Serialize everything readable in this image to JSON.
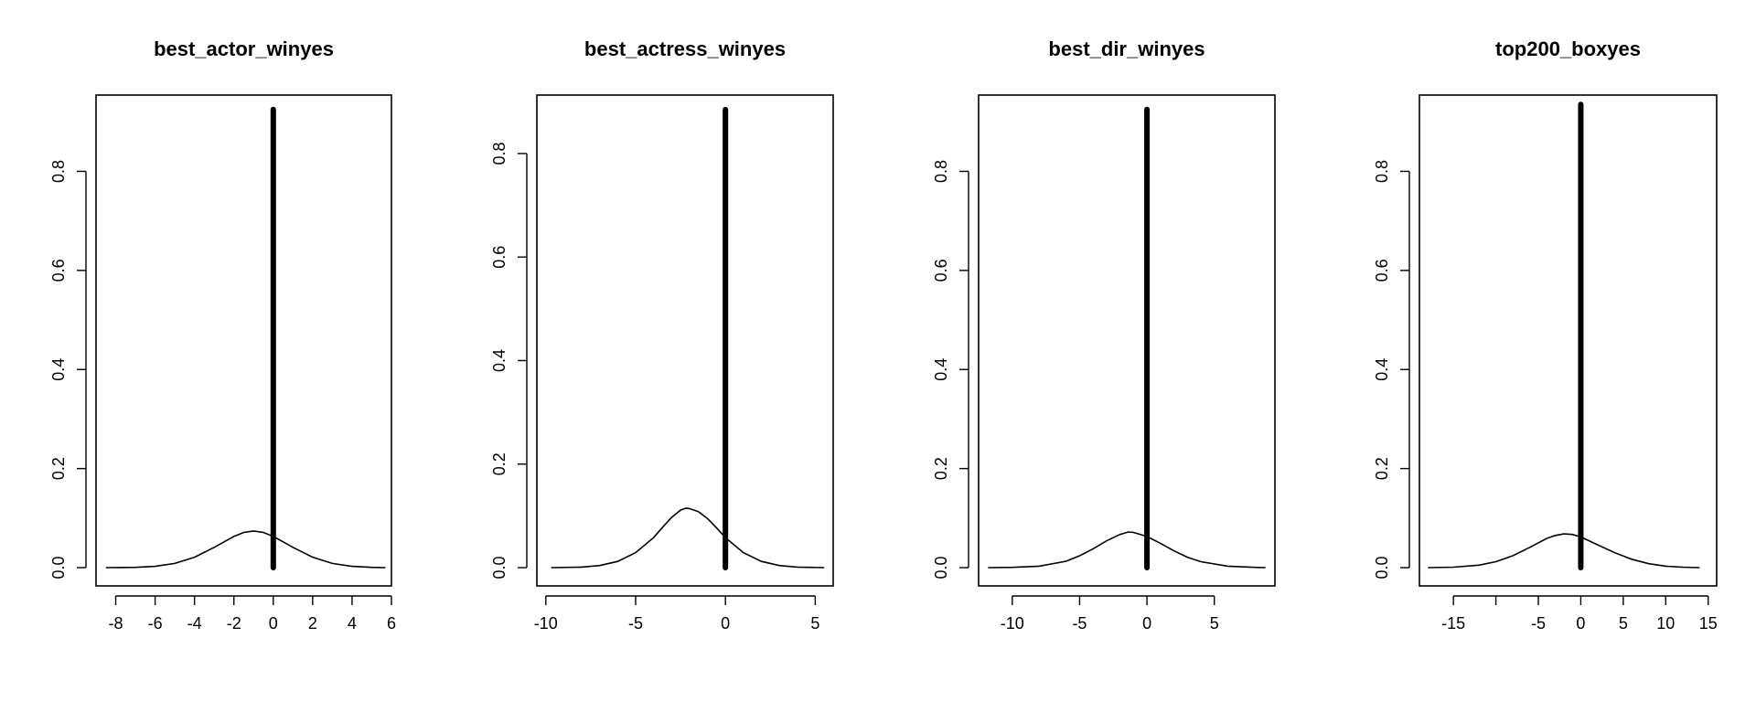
{
  "chart_data": [
    {
      "type": "line",
      "title": "best_actor_winyes",
      "xlabel": "",
      "ylabel": "",
      "xlim": [
        -9,
        6
      ],
      "ylim": [
        0,
        0.93
      ],
      "xticks": [
        -8,
        -6,
        -4,
        -2,
        0,
        2,
        4,
        6
      ],
      "xtick_labels": [
        "-8",
        "-6",
        "-4",
        "-2",
        "0",
        "2",
        "4",
        "6"
      ],
      "yticks": [
        0.0,
        0.2,
        0.4,
        0.6,
        0.8
      ],
      "ytick_labels": [
        "0.0",
        "0.2",
        "0.4",
        "0.6",
        "0.8"
      ],
      "grid": false,
      "prior_curve": {
        "x": [
          -8.5,
          -7,
          -6,
          -5,
          -4,
          -3,
          -2.5,
          -2,
          -1.5,
          -1,
          -0.5,
          0,
          0.5,
          1,
          2,
          3,
          4,
          5,
          5.7
        ],
        "y": [
          0.0,
          0.0005,
          0.0025,
          0.0085,
          0.021,
          0.041,
          0.052,
          0.063,
          0.071,
          0.074,
          0.071,
          0.063,
          0.052,
          0.041,
          0.021,
          0.0085,
          0.0025,
          0.0005,
          0.0
        ]
      },
      "point_mass": {
        "x": 0,
        "height": 0.925
      }
    },
    {
      "type": "line",
      "title": "best_actress_winyes",
      "xlabel": "",
      "ylabel": "",
      "xlim": [
        -10.5,
        6
      ],
      "ylim": [
        0,
        0.89
      ],
      "xticks": [
        -10,
        -5,
        0,
        5
      ],
      "xtick_labels": [
        "-10",
        "-5",
        "0",
        "5"
      ],
      "yticks": [
        0.0,
        0.2,
        0.4,
        0.6,
        0.8
      ],
      "ytick_labels": [
        "0.0",
        "0.2",
        "0.4",
        "0.6",
        "0.8"
      ],
      "grid": false,
      "prior_curve": {
        "x": [
          -9.7,
          -8,
          -7,
          -6,
          -5,
          -4,
          -3.5,
          -3,
          -2.5,
          -2.2,
          -2,
          -1.5,
          -1,
          -0.5,
          0,
          1,
          2,
          3,
          4,
          5.5
        ],
        "y": [
          0.0,
          0.001,
          0.004,
          0.012,
          0.029,
          0.058,
          0.078,
          0.097,
          0.111,
          0.115,
          0.114,
          0.108,
          0.095,
          0.077,
          0.058,
          0.029,
          0.012,
          0.004,
          0.001,
          0.0
        ]
      },
      "point_mass": {
        "x": 0,
        "height": 0.885
      }
    },
    {
      "type": "line",
      "title": "best_dir_winyes",
      "xlabel": "",
      "ylabel": "",
      "xlim": [
        -12.5,
        9.5
      ],
      "ylim": [
        0,
        0.93
      ],
      "xticks": [
        -10,
        -5,
        0,
        5
      ],
      "xtick_labels": [
        "-10",
        "-5",
        "0",
        "5"
      ],
      "yticks": [
        0.0,
        0.2,
        0.4,
        0.6,
        0.8
      ],
      "ytick_labels": [
        "0.0",
        "0.2",
        "0.4",
        "0.6",
        "0.8"
      ],
      "grid": false,
      "prior_curve": {
        "x": [
          -11.8,
          -10,
          -8,
          -6,
          -5,
          -4,
          -3,
          -2,
          -1.4,
          -1,
          0,
          1,
          2,
          3,
          4,
          6,
          8,
          8.8
        ],
        "y": [
          0.0,
          0.0005,
          0.003,
          0.013,
          0.024,
          0.038,
          0.054,
          0.067,
          0.072,
          0.071,
          0.063,
          0.049,
          0.034,
          0.021,
          0.012,
          0.003,
          0.0005,
          0.0
        ]
      },
      "point_mass": {
        "x": 0,
        "height": 0.925
      }
    },
    {
      "type": "line",
      "title": "top200_boxyes",
      "xlabel": "",
      "ylabel": "",
      "xlim": [
        -19,
        16
      ],
      "ylim": [
        0,
        0.93
      ],
      "xticks": [
        -15,
        -10,
        -5,
        0,
        5,
        10,
        15
      ],
      "xtick_labels": [
        "-15",
        "",
        "-5",
        "0",
        "5",
        "10",
        "15"
      ],
      "yticks": [
        0.0,
        0.2,
        0.4,
        0.6,
        0.8
      ],
      "ytick_labels": [
        "0.0",
        "0.2",
        "0.4",
        "0.6",
        "0.8"
      ],
      "grid": false,
      "prior_curve": {
        "x": [
          -18,
          -15,
          -12,
          -10,
          -8,
          -6,
          -4,
          -3,
          -2,
          -1,
          0,
          2,
          4,
          6,
          8,
          10,
          12,
          14
        ],
        "y": [
          0.0,
          0.001,
          0.005,
          0.012,
          0.024,
          0.041,
          0.059,
          0.065,
          0.068,
          0.067,
          0.062,
          0.046,
          0.03,
          0.017,
          0.008,
          0.003,
          0.001,
          0.0
        ]
      },
      "point_mass": {
        "x": 0,
        "height": 0.935
      }
    }
  ]
}
